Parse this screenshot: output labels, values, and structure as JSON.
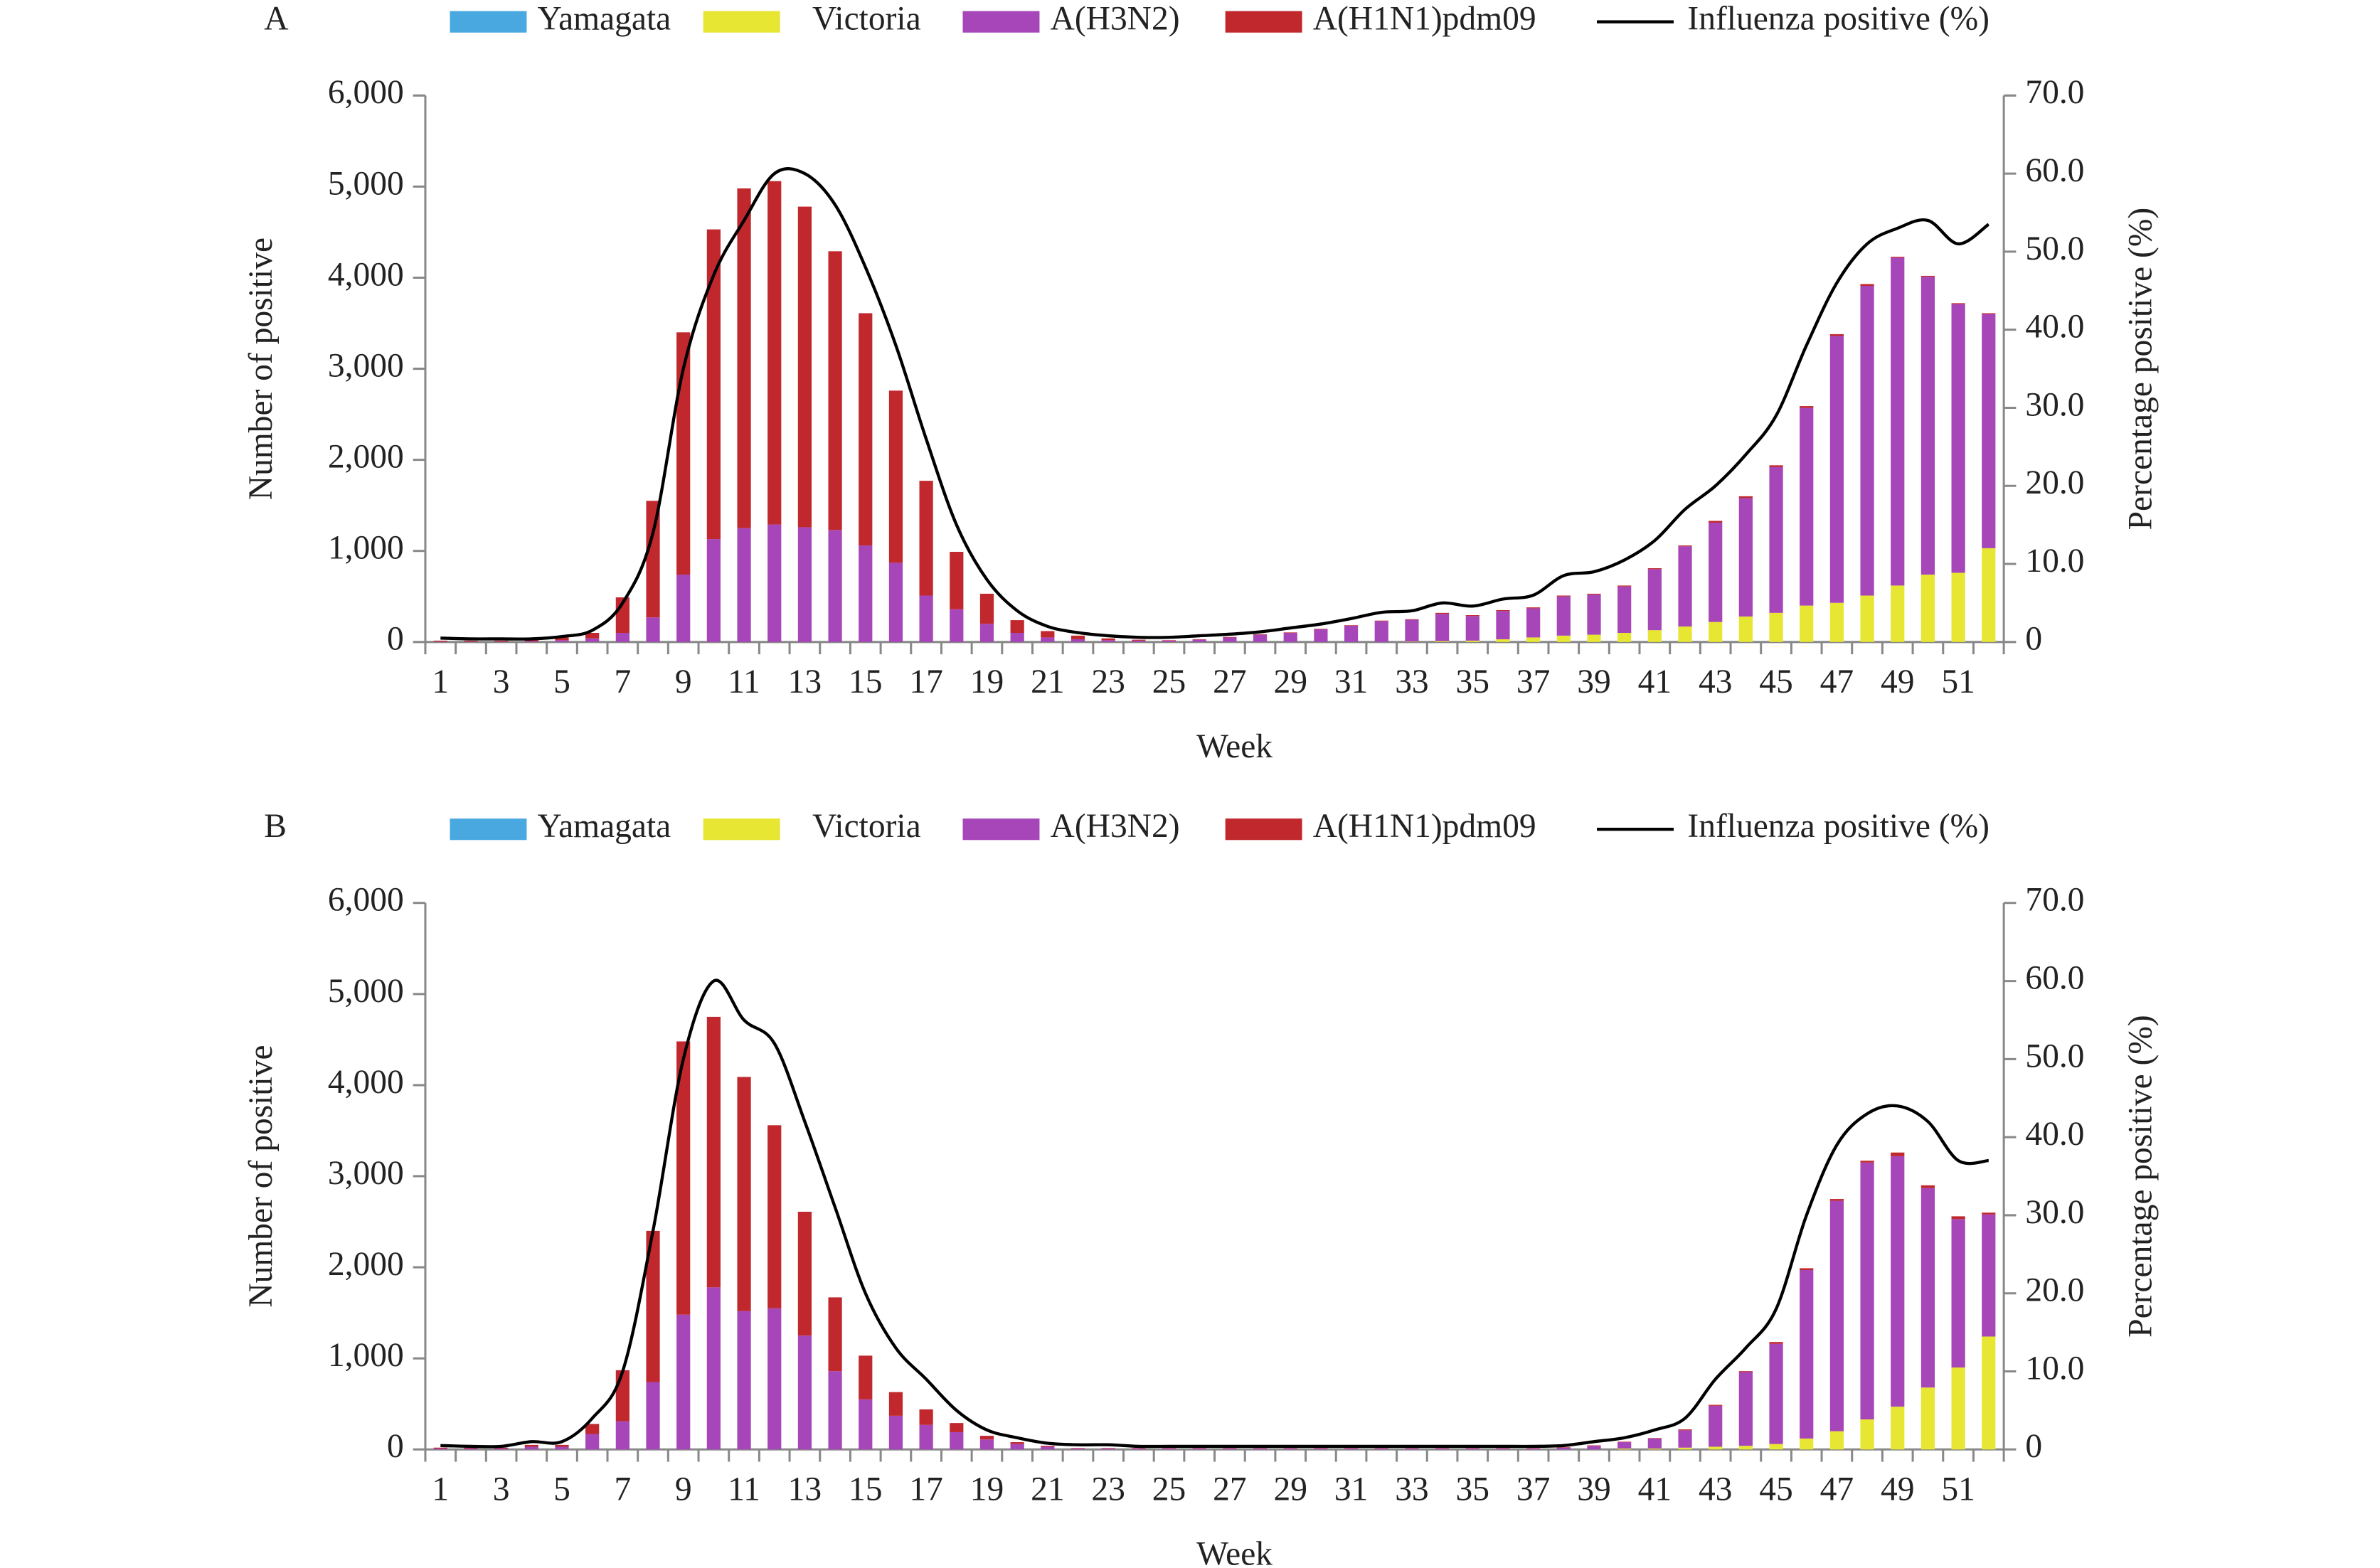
{
  "chart_data": [
    {
      "type": "bar",
      "stacked": true,
      "panel_label": "A",
      "x_label": "Week",
      "y_label": "Number of positive",
      "y2_label": "Percentage positive (%)",
      "categories": [
        1,
        null,
        3,
        null,
        5,
        null,
        7,
        null,
        9,
        null,
        11,
        null,
        13,
        null,
        15,
        null,
        17,
        null,
        19,
        null,
        21,
        null,
        23,
        null,
        25,
        null,
        27,
        null,
        29,
        null,
        31,
        null,
        33,
        null,
        35,
        null,
        37,
        null,
        39,
        null,
        41,
        null,
        43,
        null,
        45,
        null,
        47,
        null,
        49,
        null,
        51,
        null
      ],
      "ylim": [
        0,
        6000
      ],
      "yticks": [
        0,
        {
          "value": 1000,
          "label": "1,000"
        },
        {
          "value": 2000,
          "label": "2,000"
        },
        {
          "value": 3000,
          "label": "3,000"
        },
        {
          "value": 4000,
          "label": "4,000"
        },
        {
          "value": 5000,
          "label": "5,000"
        },
        {
          "value": 6000,
          "label": "6,000"
        }
      ],
      "y2lim": [
        0,
        70
      ],
      "y2ticks": [
        0,
        {
          "value": 10,
          "label": "10.0"
        },
        {
          "value": 20,
          "label": "20.0"
        },
        {
          "value": 30,
          "label": "30.0"
        },
        {
          "value": 40,
          "label": "40.0"
        },
        {
          "value": 50,
          "label": "50.0"
        },
        {
          "value": 60,
          "label": "60.0"
        },
        {
          "value": 70,
          "label": "70.0"
        }
      ],
      "series": [
        {
          "name": "Yamagata",
          "color": "#4aa8e0",
          "values": [
            0,
            0,
            0,
            0,
            0,
            0,
            0,
            0,
            0,
            0,
            0,
            0,
            0,
            0,
            0,
            0,
            0,
            0,
            0,
            0,
            0,
            0,
            0,
            0,
            0,
            0,
            0,
            0,
            0,
            0,
            0,
            0,
            0,
            0,
            0,
            0,
            0,
            0,
            0,
            0,
            0,
            0,
            0,
            0,
            0,
            0,
            0,
            0,
            0,
            0,
            0,
            0
          ]
        },
        {
          "name": "Victoria",
          "color": "#e6e633",
          "values": [
            0,
            0,
            0,
            0,
            0,
            0,
            0,
            0,
            0,
            0,
            0,
            0,
            0,
            0,
            0,
            0,
            0,
            0,
            0,
            0,
            0,
            0,
            0,
            0,
            0,
            0,
            0,
            0,
            0,
            0,
            0,
            0,
            5,
            10,
            15,
            30,
            50,
            70,
            80,
            100,
            130,
            170,
            220,
            280,
            320,
            400,
            430,
            510,
            620,
            740,
            760,
            1030
          ]
        },
        {
          "name": "A(H3N2)",
          "color": "#a646b8",
          "values": [
            5,
            5,
            5,
            10,
            20,
            40,
            100,
            270,
            740,
            1130,
            1250,
            1290,
            1260,
            1230,
            1060,
            870,
            510,
            360,
            200,
            100,
            50,
            30,
            20,
            15,
            15,
            25,
            50,
            80,
            100,
            140,
            180,
            230,
            240,
            300,
            270,
            310,
            320,
            430,
            440,
            510,
            670,
            880,
            1090,
            1300,
            1600,
            2170,
            2930,
            3400,
            3600,
            3270,
            2950,
            2570
          ]
        },
        {
          "name": "A(H1N1)pdm09",
          "color": "#c0282d",
          "values": [
            10,
            10,
            10,
            15,
            30,
            60,
            390,
            1280,
            2660,
            3400,
            3730,
            3770,
            3520,
            3060,
            2550,
            1890,
            1260,
            630,
            330,
            140,
            70,
            40,
            20,
            10,
            5,
            5,
            5,
            5,
            5,
            5,
            5,
            5,
            5,
            10,
            10,
            10,
            10,
            10,
            10,
            10,
            10,
            10,
            20,
            20,
            20,
            20,
            20,
            20,
            10,
            10,
            10,
            10
          ]
        },
        {
          "name": "Influenza positive (%)",
          "type": "line",
          "axis": "y2",
          "color": "#000000",
          "values": [
            0.5,
            0.4,
            0.4,
            0.4,
            0.7,
            1.5,
            5,
            14,
            35,
            47,
            54,
            60,
            60,
            56,
            48,
            38,
            26,
            15,
            8,
            4,
            2,
            1.2,
            0.8,
            0.6,
            0.6,
            0.8,
            1,
            1.3,
            1.8,
            2.3,
            3,
            3.8,
            4,
            5,
            4.6,
            5.5,
            6,
            8.5,
            9,
            10.5,
            13,
            17,
            20,
            24,
            29,
            38,
            46,
            51,
            53,
            54,
            51,
            53.5
          ]
        }
      ]
    },
    {
      "type": "bar",
      "stacked": true,
      "panel_label": "B",
      "x_label": "Week",
      "y_label": "Number of positive",
      "y2_label": "Percentage positive (%)",
      "categories": [
        1,
        null,
        3,
        null,
        5,
        null,
        7,
        null,
        9,
        null,
        11,
        null,
        13,
        null,
        15,
        null,
        17,
        null,
        19,
        null,
        21,
        null,
        23,
        null,
        25,
        null,
        27,
        null,
        29,
        null,
        31,
        null,
        33,
        null,
        35,
        null,
        37,
        null,
        39,
        null,
        41,
        null,
        43,
        null,
        45,
        null,
        47,
        null,
        49,
        null,
        51,
        null
      ],
      "ylim": [
        0,
        6000
      ],
      "yticks": [
        0,
        {
          "value": 1000,
          "label": "1,000"
        },
        {
          "value": 2000,
          "label": "2,000"
        },
        {
          "value": 3000,
          "label": "3,000"
        },
        {
          "value": 4000,
          "label": "4,000"
        },
        {
          "value": 5000,
          "label": "5,000"
        },
        {
          "value": 6000,
          "label": "6,000"
        }
      ],
      "y2lim": [
        0,
        70
      ],
      "y2ticks": [
        0,
        {
          "value": 10,
          "label": "10.0"
        },
        {
          "value": 20,
          "label": "20.0"
        },
        {
          "value": 30,
          "label": "30.0"
        },
        {
          "value": 40,
          "label": "40.0"
        },
        {
          "value": 50,
          "label": "50.0"
        },
        {
          "value": 60,
          "label": "60.0"
        },
        {
          "value": 70,
          "label": "70.0"
        }
      ],
      "series": [
        {
          "name": "Yamagata",
          "color": "#4aa8e0",
          "values": [
            0,
            0,
            0,
            0,
            0,
            0,
            0,
            0,
            0,
            0,
            0,
            0,
            0,
            0,
            0,
            0,
            0,
            0,
            0,
            0,
            0,
            0,
            0,
            0,
            0,
            0,
            0,
            0,
            0,
            0,
            0,
            0,
            0,
            0,
            0,
            0,
            0,
            0,
            0,
            0,
            0,
            0,
            0,
            0,
            0,
            0,
            0,
            0,
            0,
            0,
            0,
            0
          ]
        },
        {
          "name": "Victoria",
          "color": "#e6e633",
          "values": [
            0,
            0,
            0,
            0,
            0,
            0,
            0,
            0,
            0,
            0,
            0,
            0,
            0,
            0,
            0,
            0,
            0,
            0,
            0,
            0,
            0,
            0,
            0,
            0,
            0,
            0,
            0,
            0,
            0,
            0,
            0,
            0,
            0,
            0,
            0,
            0,
            0,
            0,
            0,
            10,
            10,
            20,
            30,
            40,
            60,
            120,
            200,
            330,
            470,
            680,
            900,
            1240
          ]
        },
        {
          "name": "A(H3N2)",
          "color": "#a646b8",
          "values": [
            10,
            10,
            10,
            30,
            30,
            170,
            310,
            740,
            1480,
            1780,
            1520,
            1550,
            1250,
            860,
            550,
            370,
            270,
            190,
            110,
            60,
            30,
            10,
            10,
            10,
            10,
            10,
            10,
            10,
            10,
            10,
            10,
            10,
            10,
            10,
            10,
            10,
            10,
            20,
            40,
            70,
            110,
            190,
            450,
            810,
            1100,
            1850,
            2530,
            2820,
            2750,
            2190,
            1630,
            1340
          ]
        },
        {
          "name": "A(H1N1)pdm09",
          "color": "#c0282d",
          "values": [
            10,
            10,
            10,
            20,
            20,
            110,
            560,
            1660,
            3000,
            2970,
            2570,
            2010,
            1360,
            810,
            480,
            260,
            170,
            100,
            40,
            20,
            10,
            5,
            5,
            5,
            5,
            5,
            5,
            5,
            5,
            5,
            5,
            5,
            5,
            5,
            5,
            5,
            5,
            5,
            5,
            5,
            5,
            10,
            10,
            10,
            20,
            20,
            20,
            20,
            40,
            30,
            30,
            20
          ]
        },
        {
          "name": "Influenza positive (%)",
          "type": "line",
          "axis": "y2",
          "color": "#000000",
          "values": [
            0.5,
            0.4,
            0.4,
            1,
            1,
            4,
            10,
            28,
            50,
            60,
            55,
            52,
            42,
            31,
            20,
            13,
            9,
            5,
            2.5,
            1.5,
            0.8,
            0.6,
            0.6,
            0.4,
            0.4,
            0.4,
            0.4,
            0.4,
            0.4,
            0.4,
            0.4,
            0.4,
            0.4,
            0.4,
            0.4,
            0.4,
            0.4,
            0.5,
            1,
            1.5,
            2.5,
            4,
            9,
            13,
            18,
            30,
            39,
            43,
            44,
            42,
            37,
            37
          ]
        }
      ]
    }
  ]
}
